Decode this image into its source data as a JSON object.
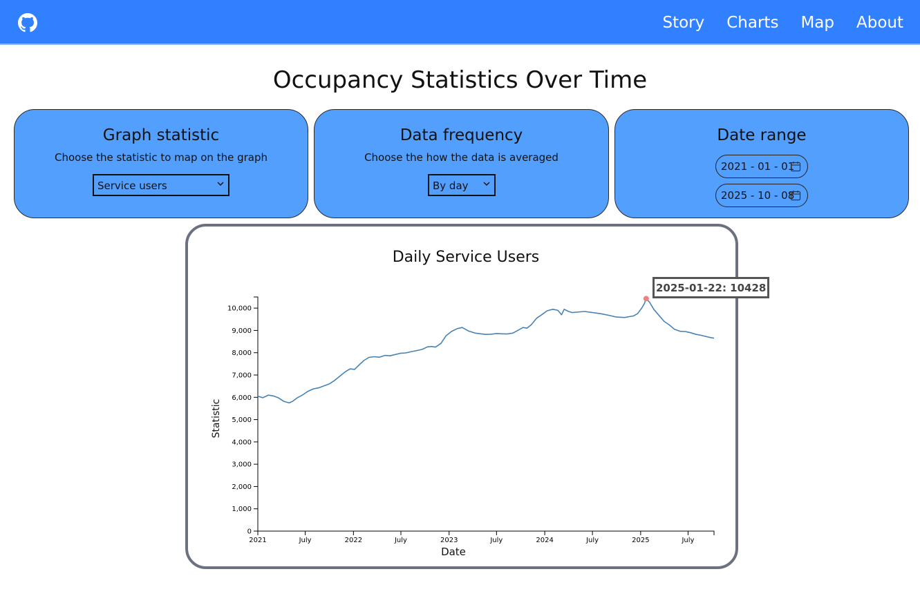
{
  "nav": {
    "github_icon": "github-icon",
    "links": [
      "Story",
      "Charts",
      "Map",
      "About"
    ]
  },
  "page_title": "Occupancy Statistics Over Time",
  "controls": {
    "statistic": {
      "title": "Graph statistic",
      "description": "Choose the statistic to map on the graph",
      "selected": "Service users"
    },
    "frequency": {
      "title": "Data frequency",
      "description": "Choose the how the data is averaged",
      "selected": "By day"
    },
    "date_range": {
      "title": "Date range",
      "start": "2021 - 01 - 01",
      "end": "2025 - 10 - 08"
    }
  },
  "tooltip": "2025-01-22: 10428",
  "colors": {
    "navbar": "#3080ff",
    "card": "#529ffe",
    "line": "#4682b4",
    "highlight": "#f08080",
    "chart_border": "#6c717f"
  },
  "chart_data": {
    "type": "line",
    "title": "Daily Service Users",
    "xlabel": "Date",
    "ylabel": "Statistic",
    "xlim": [
      "2021-01-01",
      "2025-10-08"
    ],
    "ylim": [
      0,
      10500
    ],
    "y_ticks": [
      0,
      1000,
      2000,
      3000,
      4000,
      5000,
      6000,
      7000,
      8000,
      9000,
      10000
    ],
    "y_tick_labels": [
      "0",
      "1,000",
      "2,000",
      "3,000",
      "4,000",
      "5,000",
      "6,000",
      "7,000",
      "8,000",
      "9,000",
      "10,000"
    ],
    "x_ticks": [
      "2021-01-01",
      "2021-07-01",
      "2022-01-01",
      "2022-07-01",
      "2023-01-01",
      "2023-07-01",
      "2024-01-01",
      "2024-07-01",
      "2025-01-01",
      "2025-07-01"
    ],
    "x_tick_labels": [
      "2021",
      "July",
      "2022",
      "July",
      "2023",
      "July",
      "2024",
      "July",
      "2025",
      "July"
    ],
    "highlight": {
      "x": "2025-01-22",
      "y": 10428
    },
    "series": [
      {
        "x": [
          "2021-01-01",
          "2021-01-20",
          "2021-02-10",
          "2021-03-01",
          "2021-03-20",
          "2021-04-10",
          "2021-05-01",
          "2021-05-15",
          "2021-06-01",
          "2021-06-20",
          "2021-07-10",
          "2021-08-01",
          "2021-08-20",
          "2021-09-10",
          "2021-10-01",
          "2021-10-20",
          "2021-11-10",
          "2021-12-01",
          "2021-12-20",
          "2022-01-05",
          "2022-01-25",
          "2022-02-10",
          "2022-03-01",
          "2022-03-20",
          "2022-04-10",
          "2022-05-01",
          "2022-05-20",
          "2022-06-10",
          "2022-07-01",
          "2022-07-20",
          "2022-08-10",
          "2022-09-01",
          "2022-09-20",
          "2022-10-10",
          "2022-10-25",
          "2022-11-10",
          "2022-12-01",
          "2022-12-20",
          "2023-01-10",
          "2023-02-01",
          "2023-02-20",
          "2023-03-15",
          "2023-04-10",
          "2023-05-01",
          "2023-05-20",
          "2023-06-10",
          "2023-07-01",
          "2023-07-20",
          "2023-08-10",
          "2023-09-01",
          "2023-09-20",
          "2023-10-10",
          "2023-10-25",
          "2023-11-10",
          "2023-12-01",
          "2023-12-20",
          "2024-01-10",
          "2024-02-01",
          "2024-02-20",
          "2024-03-05",
          "2024-03-15",
          "2024-04-01",
          "2024-04-15",
          "2024-05-01",
          "2024-06-01",
          "2024-07-01",
          "2024-08-01",
          "2024-09-01",
          "2024-10-01",
          "2024-11-01",
          "2024-11-20",
          "2024-12-05",
          "2024-12-20",
          "2025-01-05",
          "2025-01-15",
          "2025-01-22",
          "2025-02-05",
          "2025-02-20",
          "2025-03-10",
          "2025-04-01",
          "2025-04-20",
          "2025-05-10",
          "2025-06-01",
          "2025-06-20",
          "2025-07-10",
          "2025-08-01",
          "2025-08-20",
          "2025-09-10",
          "2025-09-25",
          "2025-10-08"
        ],
        "y": [
          6050,
          5980,
          6100,
          6060,
          5980,
          5820,
          5750,
          5830,
          5980,
          6100,
          6260,
          6380,
          6420,
          6510,
          6600,
          6750,
          6950,
          7150,
          7280,
          7250,
          7480,
          7650,
          7790,
          7820,
          7800,
          7880,
          7860,
          7920,
          7980,
          7990,
          8050,
          8100,
          8150,
          8260,
          8280,
          8250,
          8420,
          8760,
          8950,
          9080,
          9130,
          8980,
          8880,
          8850,
          8820,
          8830,
          8860,
          8850,
          8840,
          8880,
          9000,
          9130,
          9100,
          9250,
          9550,
          9700,
          9880,
          9950,
          9900,
          9700,
          9950,
          9850,
          9800,
          9820,
          9850,
          9800,
          9750,
          9680,
          9600,
          9580,
          9620,
          9650,
          9750,
          10000,
          10200,
          10428,
          10250,
          9950,
          9700,
          9400,
          9250,
          9050,
          8960,
          8950,
          8900,
          8820,
          8780,
          8720,
          8680,
          8650
        ]
      }
    ]
  }
}
